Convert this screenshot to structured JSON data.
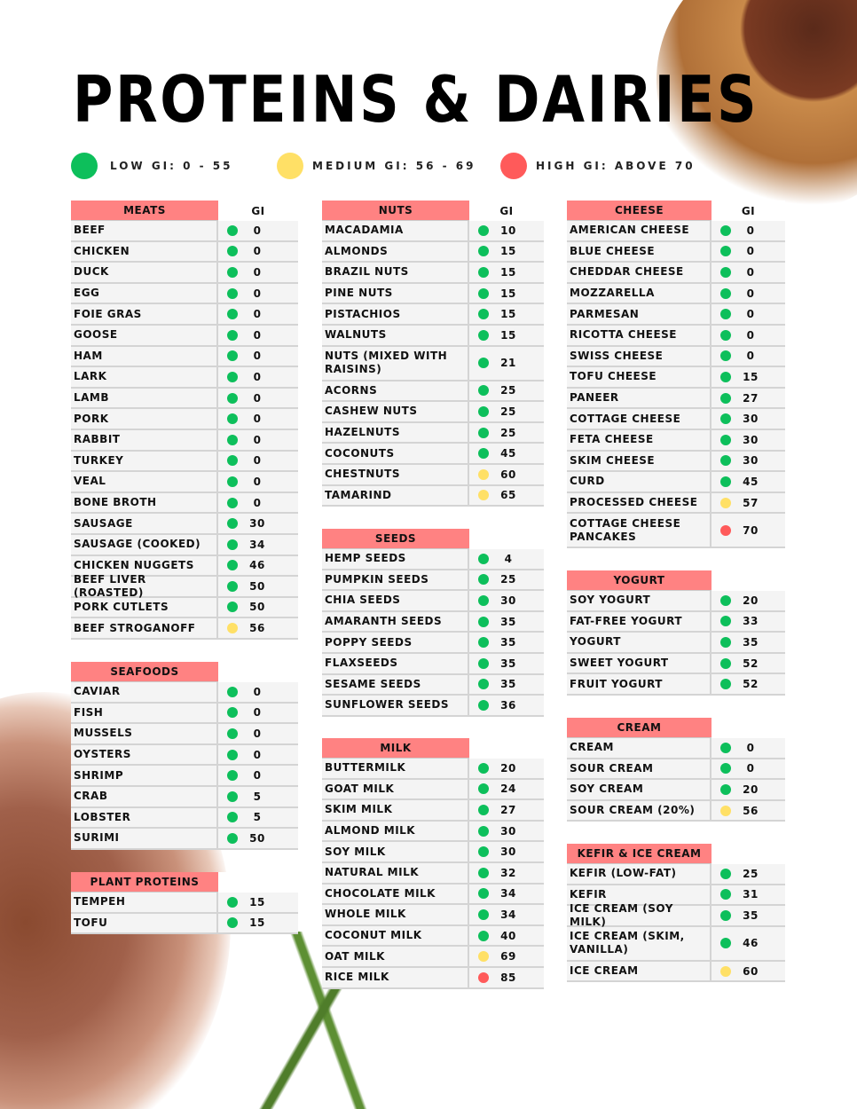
{
  "title": "PROTEINS & DAIRIES",
  "colors": {
    "low": "#0dbf5b",
    "medium": "#ffe066",
    "high": "#ff5a5a",
    "header": "#ff8282"
  },
  "legend": [
    {
      "label": "LOW GI: 0 - 55",
      "level": "low"
    },
    {
      "label": "MEDIUM GI: 56 - 69",
      "level": "medium"
    },
    {
      "label": "HIGH GI: ABOVE 70",
      "level": "high"
    }
  ],
  "gi_label": "GI",
  "columns": [
    [
      {
        "title": "MEATS",
        "show_gi": true,
        "items": [
          [
            "BEEF",
            "0",
            "low"
          ],
          [
            "CHICKEN",
            "0",
            "low"
          ],
          [
            "DUCK",
            "0",
            "low"
          ],
          [
            "EGG",
            "0",
            "low"
          ],
          [
            "FOIE GRAS",
            "0",
            "low"
          ],
          [
            "GOOSE",
            "0",
            "low"
          ],
          [
            "HAM",
            "0",
            "low"
          ],
          [
            "LARK",
            "0",
            "low"
          ],
          [
            "LAMB",
            "0",
            "low"
          ],
          [
            "PORK",
            "0",
            "low"
          ],
          [
            "RABBIT",
            "0",
            "low"
          ],
          [
            "TURKEY",
            "0",
            "low"
          ],
          [
            "VEAL",
            "0",
            "low"
          ],
          [
            "BONE BROTH",
            "0",
            "low"
          ],
          [
            "SAUSAGE",
            "30",
            "low"
          ],
          [
            "SAUSAGE (COOKED)",
            "34",
            "low"
          ],
          [
            "CHICKEN NUGGETS",
            "46",
            "low"
          ],
          [
            "BEEF LIVER (ROASTED)",
            "50",
            "low"
          ],
          [
            "PORK CUTLETS",
            "50",
            "low"
          ],
          [
            "BEEF STROGANOFF",
            "56",
            "medium"
          ]
        ]
      },
      {
        "title": "SEAFOODS",
        "items": [
          [
            "CAVIAR",
            "0",
            "low"
          ],
          [
            "FISH",
            "0",
            "low"
          ],
          [
            "MUSSELS",
            "0",
            "low"
          ],
          [
            "OYSTERS",
            "0",
            "low"
          ],
          [
            "SHRIMP",
            "0",
            "low"
          ],
          [
            "CRAB",
            "5",
            "low"
          ],
          [
            "LOBSTER",
            "5",
            "low"
          ],
          [
            "SURIMI",
            "50",
            "low"
          ]
        ]
      },
      {
        "title": "PLANT PROTEINS",
        "items": [
          [
            "TEMPEH",
            "15",
            "low"
          ],
          [
            "TOFU",
            "15",
            "low"
          ]
        ]
      }
    ],
    [
      {
        "title": "NUTS",
        "show_gi": true,
        "items": [
          [
            "MACADAMIA",
            "10",
            "low"
          ],
          [
            "ALMONDS",
            "15",
            "low"
          ],
          [
            "BRAZIL NUTS",
            "15",
            "low"
          ],
          [
            "PINE NUTS",
            "15",
            "low"
          ],
          [
            "PISTACHIOS",
            "15",
            "low"
          ],
          [
            "WALNUTS",
            "15",
            "low"
          ],
          [
            "NUTS (MIXED WITH RAISINS)",
            "21",
            "low"
          ],
          [
            "ACORNS",
            "25",
            "low"
          ],
          [
            "CASHEW NUTS",
            "25",
            "low"
          ],
          [
            "HAZELNUTS",
            "25",
            "low"
          ],
          [
            "COCONUTS",
            "45",
            "low"
          ],
          [
            "CHESTNUTS",
            "60",
            "medium"
          ],
          [
            "TAMARIND",
            "65",
            "medium"
          ]
        ]
      },
      {
        "title": "SEEDS",
        "items": [
          [
            "HEMP SEEDS",
            "4",
            "low"
          ],
          [
            "PUMPKIN SEEDS",
            "25",
            "low"
          ],
          [
            "CHIA SEEDS",
            "30",
            "low"
          ],
          [
            "AMARANTH SEEDS",
            "35",
            "low"
          ],
          [
            "POPPY SEEDS",
            "35",
            "low"
          ],
          [
            "FLAXSEEDS",
            "35",
            "low"
          ],
          [
            "SESAME SEEDS",
            "35",
            "low"
          ],
          [
            "SUNFLOWER SEEDS",
            "36",
            "low"
          ]
        ]
      },
      {
        "title": "MILK",
        "items": [
          [
            "BUTTERMILK",
            "20",
            "low"
          ],
          [
            "GOAT MILK",
            "24",
            "low"
          ],
          [
            "SKIM MILK",
            "27",
            "low"
          ],
          [
            "ALMOND MILK",
            "30",
            "low"
          ],
          [
            "SOY MILK",
            "30",
            "low"
          ],
          [
            "NATURAL MILK",
            "32",
            "low"
          ],
          [
            "CHOCOLATE MILK",
            "34",
            "low"
          ],
          [
            "WHOLE MILK",
            "34",
            "low"
          ],
          [
            "COCONUT MILK",
            "40",
            "low"
          ],
          [
            "OAT MILK",
            "69",
            "medium"
          ],
          [
            "RICE MILK",
            "85",
            "high"
          ]
        ]
      }
    ],
    [
      {
        "title": "CHEESE",
        "show_gi": true,
        "items": [
          [
            "AMERICAN CHEESE",
            "0",
            "low"
          ],
          [
            "BLUE CHEESE",
            "0",
            "low"
          ],
          [
            "CHEDDAR CHEESE",
            "0",
            "low"
          ],
          [
            "MOZZARELLA",
            "0",
            "low"
          ],
          [
            "PARMESAN",
            "0",
            "low"
          ],
          [
            "RICOTTA CHEESE",
            "0",
            "low"
          ],
          [
            "SWISS CHEESE",
            "0",
            "low"
          ],
          [
            "TOFU CHEESE",
            "15",
            "low"
          ],
          [
            "PANEER",
            "27",
            "low"
          ],
          [
            "COTTAGE CHEESE",
            "30",
            "low"
          ],
          [
            "FETA CHEESE",
            "30",
            "low"
          ],
          [
            "SKIM CHEESE",
            "30",
            "low"
          ],
          [
            "CURD",
            "45",
            "low"
          ],
          [
            "PROCESSED CHEESE",
            "57",
            "medium"
          ],
          [
            "COTTAGE CHEESE PANCAKES",
            "70",
            "high"
          ]
        ]
      },
      {
        "title": "YOGURT",
        "items": [
          [
            "SOY YOGURT",
            "20",
            "low"
          ],
          [
            "FAT-FREE YOGURT",
            "33",
            "low"
          ],
          [
            "YOGURT",
            "35",
            "low"
          ],
          [
            "SWEET YOGURT",
            "52",
            "low"
          ],
          [
            "FRUIT YOGURT",
            "52",
            "low"
          ]
        ]
      },
      {
        "title": "CREAM",
        "items": [
          [
            "CREAM",
            "0",
            "low"
          ],
          [
            "SOUR CREAM",
            "0",
            "low"
          ],
          [
            "SOY CREAM",
            "20",
            "low"
          ],
          [
            "SOUR CREAM (20%)",
            "56",
            "medium"
          ]
        ]
      },
      {
        "title": "KEFIR & ICE CREAM",
        "items": [
          [
            "KEFIR (LOW-FAT)",
            "25",
            "low"
          ],
          [
            "KEFIR",
            "31",
            "low"
          ],
          [
            "ICE CREAM (SOY MILK)",
            "35",
            "low"
          ],
          [
            "ICE CREAM (SKIM, VANILLA)",
            "46",
            "low"
          ],
          [
            "ICE CREAM",
            "60",
            "medium"
          ]
        ]
      }
    ]
  ]
}
